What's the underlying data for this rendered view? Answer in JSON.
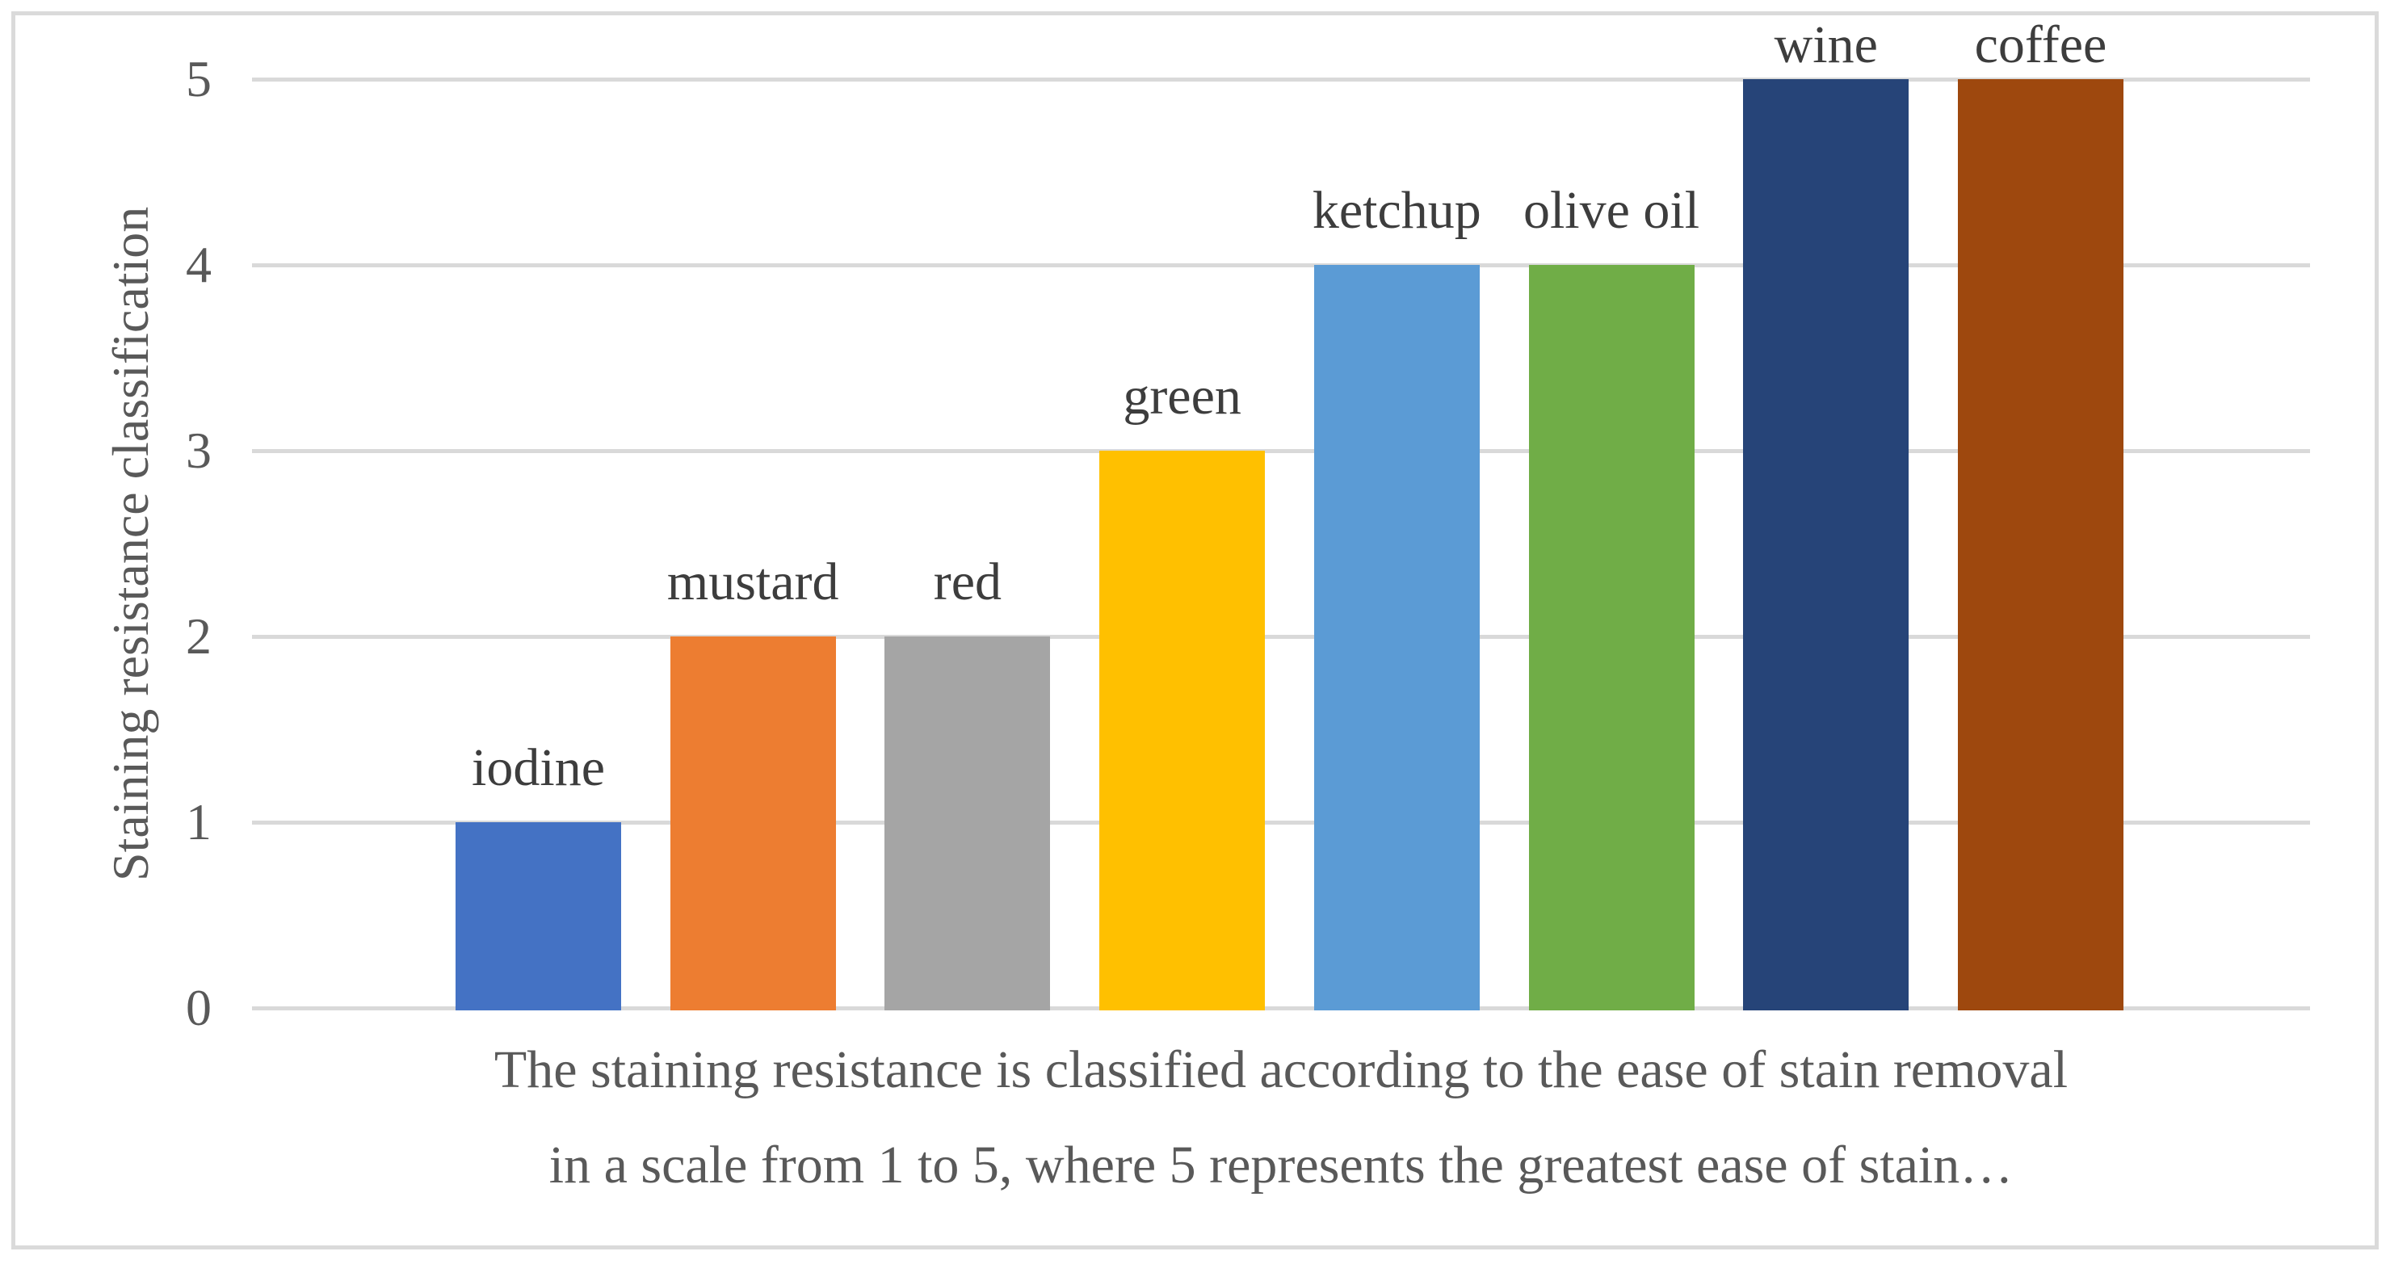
{
  "chart_data": {
    "type": "bar",
    "categories": [
      "iodine",
      "mustard",
      "red",
      "green",
      "ketchup",
      "olive oil",
      "wine",
      "coffee"
    ],
    "values": [
      1,
      2,
      2,
      3,
      4,
      4,
      5,
      5
    ],
    "bar_colors": [
      "#4472C4",
      "#ED7D31",
      "#A5A5A5",
      "#FFC000",
      "#5B9BD5",
      "#70AD47",
      "#264478",
      "#9E480E"
    ],
    "title": "",
    "ylabel": "Staining resistance classification",
    "xlabel_line1": "The staining resistance is classified according to the ease of stain removal",
    "xlabel_line2": "in a scale from 1 to 5, where 5 represents the greatest ease of stain…",
    "yticks": [
      "0",
      "1",
      "2",
      "3",
      "4",
      "5"
    ],
    "ylim": [
      0,
      5
    ],
    "grid": "horizontal",
    "legend": "none",
    "data_label_position": "outside-end"
  },
  "colors": {
    "gridline": "#D9D9D9",
    "frame_border": "#DADADA",
    "axis_text": "#595959",
    "data_label_text": "#3D3D3D",
    "background": "#FFFFFF"
  }
}
